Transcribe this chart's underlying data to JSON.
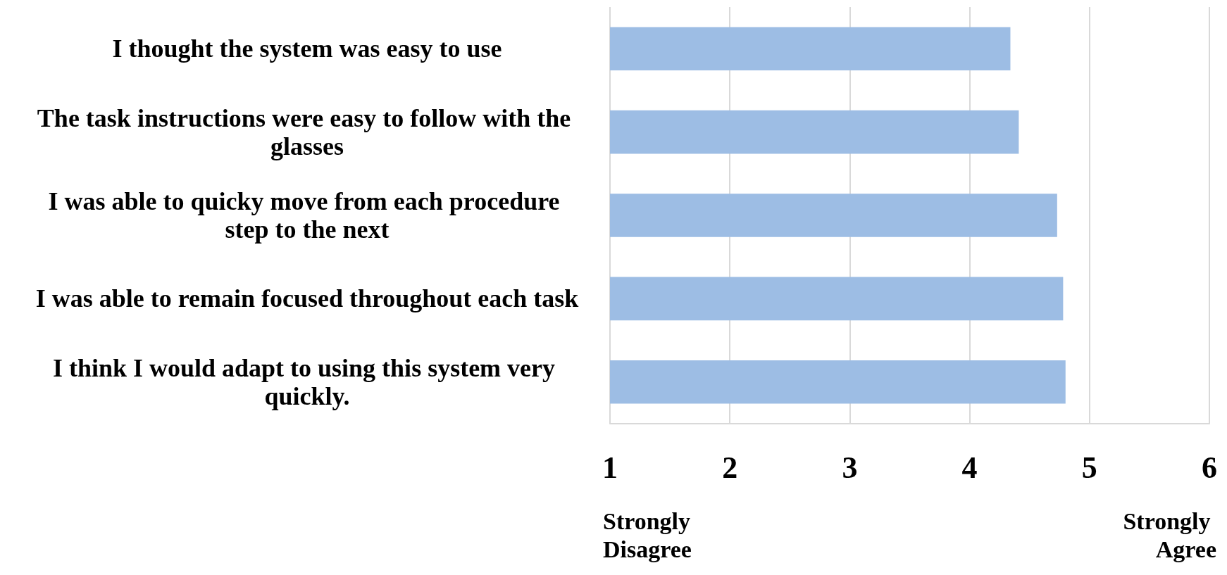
{
  "chart_data": {
    "type": "bar",
    "orientation": "horizontal",
    "categories": [
      "I thought the system was easy to use",
      "The task instructions were easy to follow with the glasses",
      "I was able to quicky move from each procedure step to the next",
      "I was able to remain focused throughout each task",
      "I think I would adapt to using this system very quickly."
    ],
    "values": [
      4.34,
      4.41,
      4.73,
      4.78,
      4.8
    ],
    "color": "#9dbde4",
    "xlim": [
      1,
      6
    ],
    "xticks": [
      1,
      2,
      3,
      4,
      5,
      6
    ],
    "grid": "x",
    "annotations": [
      "Strongly Disagree",
      "Strongly Agree"
    ]
  }
}
